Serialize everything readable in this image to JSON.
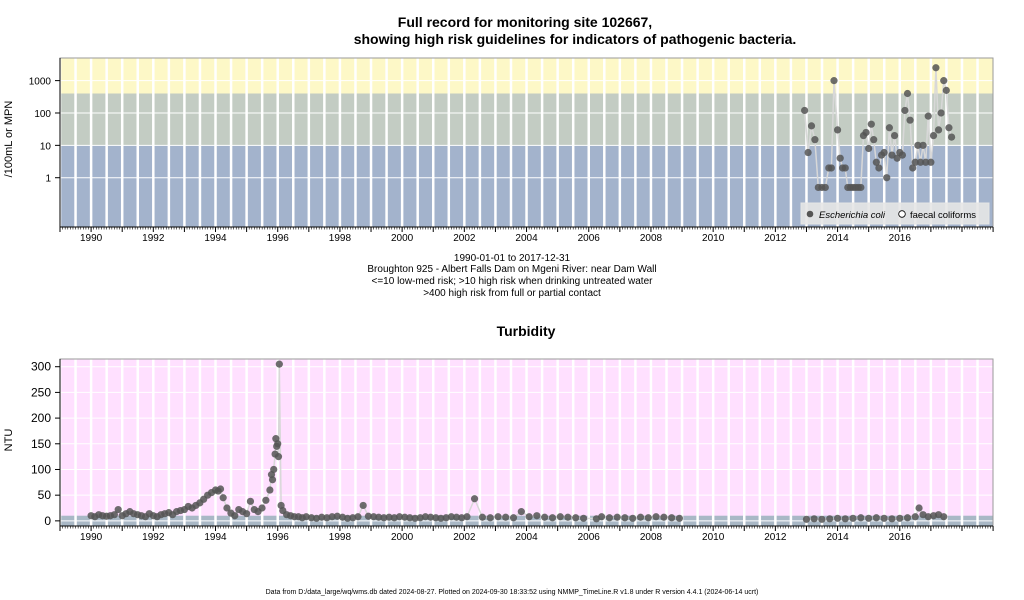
{
  "chart_data": [
    {
      "type": "scatter",
      "title_line1": "Full record for monitoring site 102667,",
      "title_line2": "showing high risk guidelines for indicators of pathogenic bacteria.",
      "ylabel": "/100mL or MPN",
      "y_scale": "log",
      "xlim": [
        "1989-01-01",
        "2018-12-31"
      ],
      "ylim": [
        0.03,
        5000
      ],
      "x_ticks": [
        "1990",
        "1992",
        "1994",
        "1996",
        "1998",
        "2000",
        "2002",
        "2004",
        "2006",
        "2008",
        "2010",
        "2012",
        "2014",
        "2016"
      ],
      "y_ticks": [
        "1",
        "10",
        "100",
        "1000"
      ],
      "guideline_bands": [
        {
          "from": 0.03,
          "to": 10,
          "color": "#a3b3cc",
          "meaning": "<=10 low-med risk"
        },
        {
          "from": 10,
          "to": 400,
          "color": "#c3ccc3",
          "meaning": ">10 high risk when drinking untreated water"
        },
        {
          "from": 400,
          "to": 5000,
          "color": "#fdf8c7",
          "meaning": ">400 high risk from full or partial contact"
        }
      ],
      "legend": {
        "position": "bottom-right",
        "items": [
          "Escherichia coli",
          "faecal coliforms"
        ]
      },
      "series": [
        {
          "name": "Escherichia coli",
          "color": "#555555",
          "points": [
            [
              "2012-12-10",
              120
            ],
            [
              "2013-01-20",
              6
            ],
            [
              "2013-03-01",
              40
            ],
            [
              "2013-04-10",
              15
            ],
            [
              "2013-05-20",
              0.5
            ],
            [
              "2013-07-01",
              0.5
            ],
            [
              "2013-08-10",
              0.5
            ],
            [
              "2013-09-20",
              2
            ],
            [
              "2013-10-20",
              2
            ],
            [
              "2013-11-20",
              1000
            ],
            [
              "2014-01-01",
              30
            ],
            [
              "2014-02-01",
              4
            ],
            [
              "2014-03-01",
              2
            ],
            [
              "2014-04-01",
              2
            ],
            [
              "2014-05-01",
              0.5
            ],
            [
              "2014-06-01",
              0.5
            ],
            [
              "2014-07-01",
              0.5
            ],
            [
              "2014-08-01",
              0.5
            ],
            [
              "2014-09-01",
              0.5
            ],
            [
              "2014-10-01",
              0.5
            ],
            [
              "2014-11-01",
              20
            ],
            [
              "2014-12-01",
              25
            ],
            [
              "2015-01-01",
              8
            ],
            [
              "2015-02-01",
              45
            ],
            [
              "2015-03-01",
              15
            ],
            [
              "2015-04-01",
              3
            ],
            [
              "2015-05-01",
              2
            ],
            [
              "2015-06-01",
              5
            ],
            [
              "2015-07-01",
              6
            ],
            [
              "2015-08-01",
              1
            ],
            [
              "2015-09-01",
              35
            ],
            [
              "2015-10-01",
              5
            ],
            [
              "2015-11-01",
              20
            ],
            [
              "2015-12-01",
              4
            ],
            [
              "2016-01-01",
              6
            ],
            [
              "2016-02-01",
              5
            ],
            [
              "2016-03-01",
              120
            ],
            [
              "2016-04-01",
              400
            ],
            [
              "2016-05-01",
              60
            ],
            [
              "2016-06-01",
              2
            ],
            [
              "2016-07-01",
              3
            ],
            [
              "2016-08-01",
              10
            ],
            [
              "2016-09-01",
              3
            ],
            [
              "2016-10-01",
              10
            ],
            [
              "2016-11-01",
              3
            ],
            [
              "2016-12-01",
              80
            ],
            [
              "2017-01-01",
              3
            ],
            [
              "2017-02-01",
              20
            ],
            [
              "2017-03-01",
              2500
            ],
            [
              "2017-04-01",
              30
            ],
            [
              "2017-05-01",
              100
            ],
            [
              "2017-06-01",
              1000
            ],
            [
              "2017-07-01",
              500
            ],
            [
              "2017-08-01",
              35
            ],
            [
              "2017-09-01",
              18
            ]
          ]
        }
      ]
    },
    {
      "type": "scatter",
      "title": "Turbidity",
      "ylabel": "NTU",
      "xlim": [
        "1989-01-01",
        "2018-12-31"
      ],
      "ylim": [
        -10,
        315
      ],
      "x_ticks": [
        "1990",
        "1992",
        "1994",
        "1996",
        "1998",
        "2000",
        "2002",
        "2004",
        "2006",
        "2008",
        "2010",
        "2012",
        "2014",
        "2016"
      ],
      "y_ticks": [
        "0",
        "50",
        "100",
        "150",
        "200",
        "250",
        "300"
      ],
      "background": "#ffe0ff",
      "guideline_band": {
        "from": -10,
        "to": 10,
        "color": "#a9b8c6"
      },
      "series": [
        {
          "name": "",
          "color": "#555555",
          "points": [
            [
              "1990-01-01",
              10
            ],
            [
              "1990-02-15",
              8
            ],
            [
              "1990-04-01",
              12
            ],
            [
              "1990-05-15",
              10
            ],
            [
              "1990-07-01",
              9
            ],
            [
              "1990-08-15",
              10
            ],
            [
              "1990-10-01",
              12
            ],
            [
              "1990-11-15",
              22
            ],
            [
              "1991-01-01",
              10
            ],
            [
              "1991-02-15",
              14
            ],
            [
              "1991-04-01",
              18
            ],
            [
              "1991-05-15",
              14
            ],
            [
              "1991-07-01",
              12
            ],
            [
              "1991-08-15",
              10
            ],
            [
              "1991-10-01",
              8
            ],
            [
              "1991-11-15",
              14
            ],
            [
              "1992-01-01",
              10
            ],
            [
              "1992-02-15",
              8
            ],
            [
              "1992-04-01",
              12
            ],
            [
              "1992-05-15",
              14
            ],
            [
              "1992-07-01",
              16
            ],
            [
              "1992-08-15",
              12
            ],
            [
              "1992-10-01",
              18
            ],
            [
              "1992-11-15",
              20
            ],
            [
              "1993-01-01",
              22
            ],
            [
              "1993-02-15",
              28
            ],
            [
              "1993-04-01",
              25
            ],
            [
              "1993-05-15",
              30
            ],
            [
              "1993-07-01",
              35
            ],
            [
              "1993-08-15",
              42
            ],
            [
              "1993-10-01",
              50
            ],
            [
              "1993-11-15",
              55
            ],
            [
              "1994-01-01",
              60
            ],
            [
              "1994-02-01",
              58
            ],
            [
              "1994-03-01",
              62
            ],
            [
              "1994-04-01",
              45
            ],
            [
              "1994-05-15",
              25
            ],
            [
              "1994-07-01",
              15
            ],
            [
              "1994-08-15",
              10
            ],
            [
              "1994-10-01",
              22
            ],
            [
              "1994-11-15",
              18
            ],
            [
              "1995-01-01",
              14
            ],
            [
              "1995-02-15",
              38
            ],
            [
              "1995-04-01",
              22
            ],
            [
              "1995-05-15",
              18
            ],
            [
              "1995-07-01",
              25
            ],
            [
              "1995-08-15",
              40
            ],
            [
              "1995-10-01",
              60
            ],
            [
              "1995-10-20",
              90
            ],
            [
              "1995-11-01",
              80
            ],
            [
              "1995-11-15",
              100
            ],
            [
              "1995-12-01",
              130
            ],
            [
              "1995-12-10",
              160
            ],
            [
              "1995-12-20",
              145
            ],
            [
              "1996-01-01",
              150
            ],
            [
              "1996-01-10",
              125
            ],
            [
              "1996-01-20",
              305
            ],
            [
              "1996-02-10",
              30
            ],
            [
              "1996-03-01",
              20
            ],
            [
              "1996-04-15",
              12
            ],
            [
              "1996-06-01",
              10
            ],
            [
              "1996-07-15",
              8
            ],
            [
              "1996-09-01",
              8
            ],
            [
              "1996-10-15",
              6
            ],
            [
              "1996-12-01",
              8
            ],
            [
              "1997-02-01",
              6
            ],
            [
              "1997-04-01",
              5
            ],
            [
              "1997-06-01",
              7
            ],
            [
              "1997-08-01",
              6
            ],
            [
              "1997-10-01",
              8
            ],
            [
              "1997-12-01",
              9
            ],
            [
              "1998-02-01",
              7
            ],
            [
              "1998-04-01",
              5
            ],
            [
              "1998-06-01",
              6
            ],
            [
              "1998-08-01",
              8
            ],
            [
              "1998-10-01",
              30
            ],
            [
              "1998-12-01",
              9
            ],
            [
              "1999-02-01",
              8
            ],
            [
              "1999-04-01",
              7
            ],
            [
              "1999-06-01",
              6
            ],
            [
              "1999-08-01",
              7
            ],
            [
              "1999-10-01",
              6
            ],
            [
              "1999-12-01",
              8
            ],
            [
              "2000-02-01",
              7
            ],
            [
              "2000-04-01",
              6
            ],
            [
              "2000-06-01",
              5
            ],
            [
              "2000-08-01",
              6
            ],
            [
              "2000-10-01",
              8
            ],
            [
              "2000-12-01",
              7
            ],
            [
              "2001-02-01",
              6
            ],
            [
              "2001-04-01",
              5
            ],
            [
              "2001-06-01",
              6
            ],
            [
              "2001-08-01",
              8
            ],
            [
              "2001-10-01",
              7
            ],
            [
              "2001-12-01",
              6
            ],
            [
              "2002-02-01",
              8
            ],
            [
              "2002-05-01",
              43
            ],
            [
              "2002-08-01",
              7
            ],
            [
              "2002-11-01",
              6
            ],
            [
              "2003-02-01",
              8
            ],
            [
              "2003-05-01",
              7
            ],
            [
              "2003-08-01",
              6
            ],
            [
              "2003-11-01",
              18
            ],
            [
              "2004-02-01",
              8
            ],
            [
              "2004-05-01",
              10
            ],
            [
              "2004-08-01",
              7
            ],
            [
              "2004-11-01",
              6
            ],
            [
              "2005-02-01",
              8
            ],
            [
              "2005-05-01",
              7
            ],
            [
              "2005-08-01",
              6
            ],
            [
              "2005-11-01",
              5
            ],
            [
              "2006-04-01",
              4
            ],
            [
              "2006-06-01",
              8
            ],
            [
              "2006-09-01",
              6
            ],
            [
              "2006-12-01",
              7
            ],
            [
              "2007-03-01",
              6
            ],
            [
              "2007-06-01",
              5
            ],
            [
              "2007-09-01",
              7
            ],
            [
              "2007-12-01",
              6
            ],
            [
              "2008-03-01",
              8
            ],
            [
              "2008-06-01",
              7
            ],
            [
              "2008-09-01",
              6
            ],
            [
              "2008-12-01",
              5
            ],
            [
              "2013-01-01",
              3
            ],
            [
              "2013-04-01",
              4
            ],
            [
              "2013-07-01",
              3
            ],
            [
              "2013-10-01",
              4
            ],
            [
              "2014-01-01",
              5
            ],
            [
              "2014-04-01",
              4
            ],
            [
              "2014-07-01",
              5
            ],
            [
              "2014-10-01",
              6
            ],
            [
              "2015-01-01",
              5
            ],
            [
              "2015-04-01",
              6
            ],
            [
              "2015-07-01",
              5
            ],
            [
              "2015-10-01",
              4
            ],
            [
              "2016-01-01",
              5
            ],
            [
              "2016-04-01",
              6
            ],
            [
              "2016-07-01",
              8
            ],
            [
              "2016-08-15",
              25
            ],
            [
              "2016-10-01",
              12
            ],
            [
              "2016-12-01",
              8
            ],
            [
              "2017-02-01",
              10
            ],
            [
              "2017-04-01",
              12
            ],
            [
              "2017-06-01",
              8
            ]
          ]
        }
      ]
    }
  ],
  "caption": {
    "line1": "1990-01-01 to 2017-12-31",
    "line2": "Broughton 925 - Albert Falls Dam on Mgeni River: near Dam Wall",
    "line3": "<=10 low-med risk; >10 high risk when drinking untreated water",
    "line4": ">400 high risk from full or partial contact"
  },
  "footer": "Data from D:/data_large/wq/wms.db dated 2024-08-27. Plotted on 2024-09-30 18:33:52 using NMMP_TimeLine.R v1.8 under R version 4.4.1 (2024-06-14 ucrt)"
}
